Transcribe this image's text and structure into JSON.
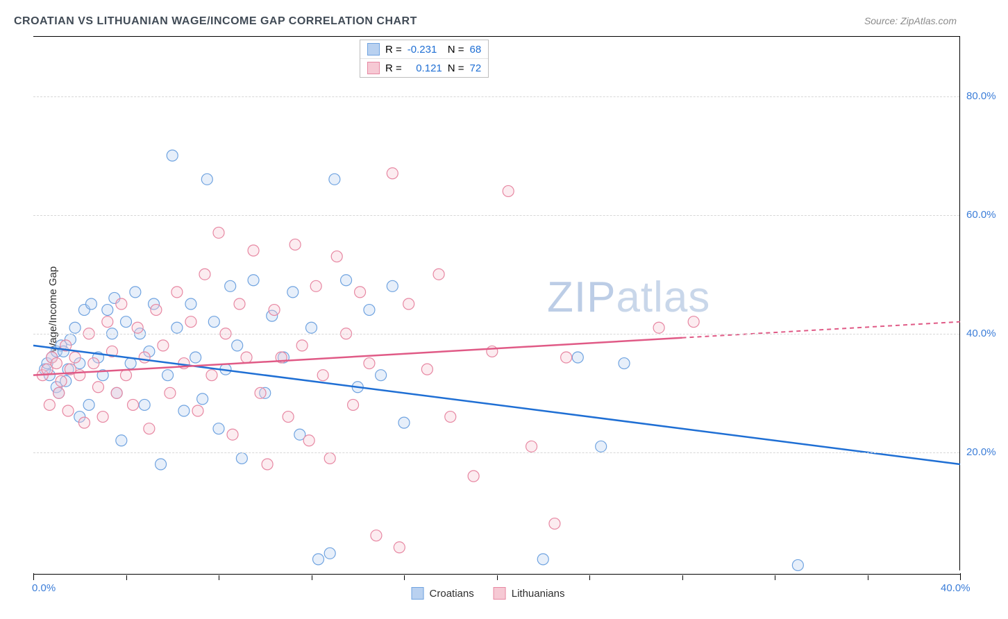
{
  "title": "CROATIAN VS LITHUANIAN WAGE/INCOME GAP CORRELATION CHART",
  "source_label": "Source: ZipAtlas.com",
  "y_axis_label": "Wage/Income Gap",
  "watermark": {
    "bold": "ZIP",
    "thin": "atlas"
  },
  "chart": {
    "type": "scatter",
    "x_range": [
      0,
      40
    ],
    "y_range": [
      0,
      90
    ],
    "background_color": "#ffffff",
    "grid_color": "#d7d7d7",
    "grid_dash": true,
    "y_ticks": [
      {
        "value": 20,
        "label": "20.0%"
      },
      {
        "value": 40,
        "label": "40.0%"
      },
      {
        "value": 60,
        "label": "60.0%"
      },
      {
        "value": 80,
        "label": "80.0%"
      }
    ],
    "x_ticks_major": [
      0,
      40
    ],
    "x_ticks_minor": [
      4,
      8,
      12,
      16,
      20,
      24,
      28,
      32,
      36
    ],
    "x_tick_labels": [
      {
        "value": 0,
        "label": "0.0%"
      },
      {
        "value": 40,
        "label": "40.0%"
      }
    ],
    "y_tick_label_color": "#3b7dd8",
    "x_tick_label_color": "#3b7dd8",
    "marker_radius": 8,
    "marker_stroke_width": 1.2,
    "marker_fill_opacity": 0.35,
    "series": [
      {
        "id": "croatians",
        "name": "Croatians",
        "color_fill": "#b9d1f0",
        "color_stroke": "#6fa3e0",
        "R": "-0.231",
        "N": "68",
        "trend": {
          "x1": 0,
          "y1": 38,
          "x2": 40,
          "y2": 18,
          "color": "#1f6fd4",
          "solid_until_x": 40
        },
        "points": [
          [
            0.5,
            34
          ],
          [
            0.6,
            35
          ],
          [
            0.7,
            33
          ],
          [
            0.8,
            36
          ],
          [
            1.0,
            31
          ],
          [
            1.0,
            37
          ],
          [
            1.1,
            30
          ],
          [
            1.2,
            38
          ],
          [
            1.3,
            37
          ],
          [
            1.4,
            32
          ],
          [
            1.5,
            34
          ],
          [
            1.6,
            39
          ],
          [
            1.8,
            41
          ],
          [
            2.0,
            35
          ],
          [
            2.0,
            26
          ],
          [
            2.2,
            44
          ],
          [
            2.4,
            28
          ],
          [
            2.5,
            45
          ],
          [
            2.8,
            36
          ],
          [
            3.0,
            33
          ],
          [
            3.2,
            44
          ],
          [
            3.4,
            40
          ],
          [
            3.5,
            46
          ],
          [
            3.6,
            30
          ],
          [
            3.8,
            22
          ],
          [
            4.0,
            42
          ],
          [
            4.2,
            35
          ],
          [
            4.4,
            47
          ],
          [
            4.6,
            40
          ],
          [
            4.8,
            28
          ],
          [
            5.0,
            37
          ],
          [
            5.2,
            45
          ],
          [
            5.5,
            18
          ],
          [
            5.8,
            33
          ],
          [
            6.0,
            70
          ],
          [
            6.2,
            41
          ],
          [
            6.5,
            27
          ],
          [
            6.8,
            45
          ],
          [
            7.0,
            36
          ],
          [
            7.3,
            29
          ],
          [
            7.5,
            66
          ],
          [
            7.8,
            42
          ],
          [
            8.0,
            24
          ],
          [
            8.3,
            34
          ],
          [
            8.5,
            48
          ],
          [
            8.8,
            38
          ],
          [
            9.0,
            19
          ],
          [
            9.5,
            49
          ],
          [
            10.0,
            30
          ],
          [
            10.3,
            43
          ],
          [
            10.8,
            36
          ],
          [
            11.2,
            47
          ],
          [
            11.5,
            23
          ],
          [
            12.0,
            41
          ],
          [
            12.3,
            2
          ],
          [
            12.8,
            3
          ],
          [
            13.0,
            66
          ],
          [
            13.5,
            49
          ],
          [
            14.0,
            31
          ],
          [
            14.5,
            44
          ],
          [
            15.0,
            33
          ],
          [
            15.5,
            48
          ],
          [
            16.0,
            25
          ],
          [
            22.0,
            2
          ],
          [
            23.5,
            36
          ],
          [
            24.5,
            21
          ],
          [
            25.5,
            35
          ],
          [
            33.0,
            1
          ]
        ]
      },
      {
        "id": "lithuanians",
        "name": "Lithuanians",
        "color_fill": "#f6c9d4",
        "color_stroke": "#e787a2",
        "R": "0.121",
        "N": "72",
        "trend": {
          "x1": 0,
          "y1": 33,
          "x2": 40,
          "y2": 42,
          "color": "#e05a86",
          "solid_until_x": 28
        },
        "points": [
          [
            0.4,
            33
          ],
          [
            0.6,
            34
          ],
          [
            0.7,
            28
          ],
          [
            0.8,
            36
          ],
          [
            1.0,
            35
          ],
          [
            1.1,
            30
          ],
          [
            1.2,
            32
          ],
          [
            1.4,
            38
          ],
          [
            1.5,
            27
          ],
          [
            1.6,
            34
          ],
          [
            1.8,
            36
          ],
          [
            2.0,
            33
          ],
          [
            2.2,
            25
          ],
          [
            2.4,
            40
          ],
          [
            2.6,
            35
          ],
          [
            2.8,
            31
          ],
          [
            3.0,
            26
          ],
          [
            3.2,
            42
          ],
          [
            3.4,
            37
          ],
          [
            3.6,
            30
          ],
          [
            3.8,
            45
          ],
          [
            4.0,
            33
          ],
          [
            4.3,
            28
          ],
          [
            4.5,
            41
          ],
          [
            4.8,
            36
          ],
          [
            5.0,
            24
          ],
          [
            5.3,
            44
          ],
          [
            5.6,
            38
          ],
          [
            5.9,
            30
          ],
          [
            6.2,
            47
          ],
          [
            6.5,
            35
          ],
          [
            6.8,
            42
          ],
          [
            7.1,
            27
          ],
          [
            7.4,
            50
          ],
          [
            7.7,
            33
          ],
          [
            8.0,
            57
          ],
          [
            8.3,
            40
          ],
          [
            8.6,
            23
          ],
          [
            8.9,
            45
          ],
          [
            9.2,
            36
          ],
          [
            9.5,
            54
          ],
          [
            9.8,
            30
          ],
          [
            10.1,
            18
          ],
          [
            10.4,
            44
          ],
          [
            10.7,
            36
          ],
          [
            11.0,
            26
          ],
          [
            11.3,
            55
          ],
          [
            11.6,
            38
          ],
          [
            11.9,
            22
          ],
          [
            12.2,
            48
          ],
          [
            12.5,
            33
          ],
          [
            12.8,
            19
          ],
          [
            13.1,
            53
          ],
          [
            13.5,
            40
          ],
          [
            13.8,
            28
          ],
          [
            14.1,
            47
          ],
          [
            14.5,
            35
          ],
          [
            14.8,
            6
          ],
          [
            15.5,
            67
          ],
          [
            15.8,
            4
          ],
          [
            16.2,
            45
          ],
          [
            17.0,
            34
          ],
          [
            17.5,
            50
          ],
          [
            18.0,
            26
          ],
          [
            19.0,
            16
          ],
          [
            19.8,
            37
          ],
          [
            20.5,
            64
          ],
          [
            21.5,
            21
          ],
          [
            22.5,
            8
          ],
          [
            27.0,
            41
          ],
          [
            23.0,
            36
          ],
          [
            28.5,
            42
          ]
        ]
      }
    ]
  },
  "legend_stats": {
    "label_R": "R =",
    "label_N": "N =",
    "value_color": "#1f6fd4"
  },
  "legend_bottom": {
    "items": [
      {
        "label": "Croatians",
        "fill": "#b9d1f0",
        "stroke": "#6fa3e0"
      },
      {
        "label": "Lithuanians",
        "fill": "#f6c9d4",
        "stroke": "#e787a2"
      }
    ]
  }
}
